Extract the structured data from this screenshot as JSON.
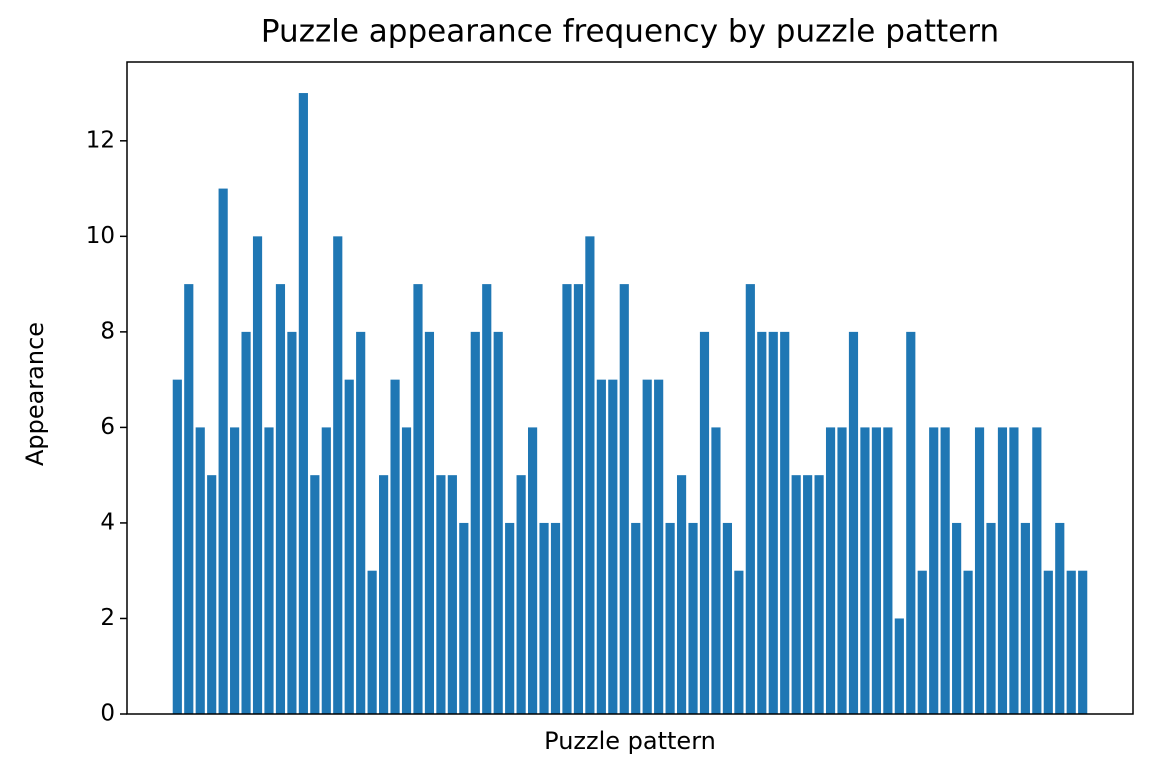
{
  "chart_data": {
    "type": "bar",
    "title": "Puzzle appearance frequency by puzzle pattern",
    "x_label": "Puzzle pattern",
    "y_label": "Appearance",
    "categories": [
      null,
      null,
      null,
      null,
      null,
      null,
      null,
      null,
      null,
      null,
      null,
      null,
      null,
      null,
      null,
      null,
      null,
      null,
      null,
      null,
      null,
      null,
      null,
      null,
      null,
      null,
      null,
      null,
      null,
      null,
      null,
      null,
      null,
      null,
      null,
      null,
      null,
      null,
      null,
      null,
      null,
      null,
      null,
      null,
      null,
      null,
      null,
      null,
      null,
      null,
      null,
      null,
      null,
      null,
      null,
      null,
      null,
      null,
      null,
      null,
      null,
      null,
      null,
      null,
      null,
      null,
      null,
      null,
      null,
      null,
      null,
      null,
      null,
      null,
      null,
      null,
      null,
      null,
      null,
      null
    ],
    "values": [
      7,
      9,
      6,
      5,
      11,
      6,
      8,
      10,
      6,
      9,
      8,
      13,
      5,
      6,
      10,
      7,
      8,
      3,
      5,
      7,
      6,
      9,
      8,
      5,
      5,
      4,
      8,
      9,
      8,
      4,
      5,
      6,
      4,
      4,
      9,
      9,
      10,
      7,
      7,
      9,
      4,
      7,
      7,
      4,
      5,
      4,
      8,
      6,
      4,
      3,
      9,
      8,
      8,
      8,
      5,
      5,
      5,
      6,
      6,
      8,
      6,
      6,
      6,
      2,
      8,
      3,
      6,
      6,
      4,
      3,
      6,
      4,
      6,
      6,
      4,
      6,
      3,
      4,
      3,
      3
    ],
    "color": "#1f77b4",
    "ylim": [
      0,
      13.65
    ],
    "yticks": [
      0,
      2,
      4,
      6,
      8,
      10,
      12
    ],
    "grid": false
  }
}
